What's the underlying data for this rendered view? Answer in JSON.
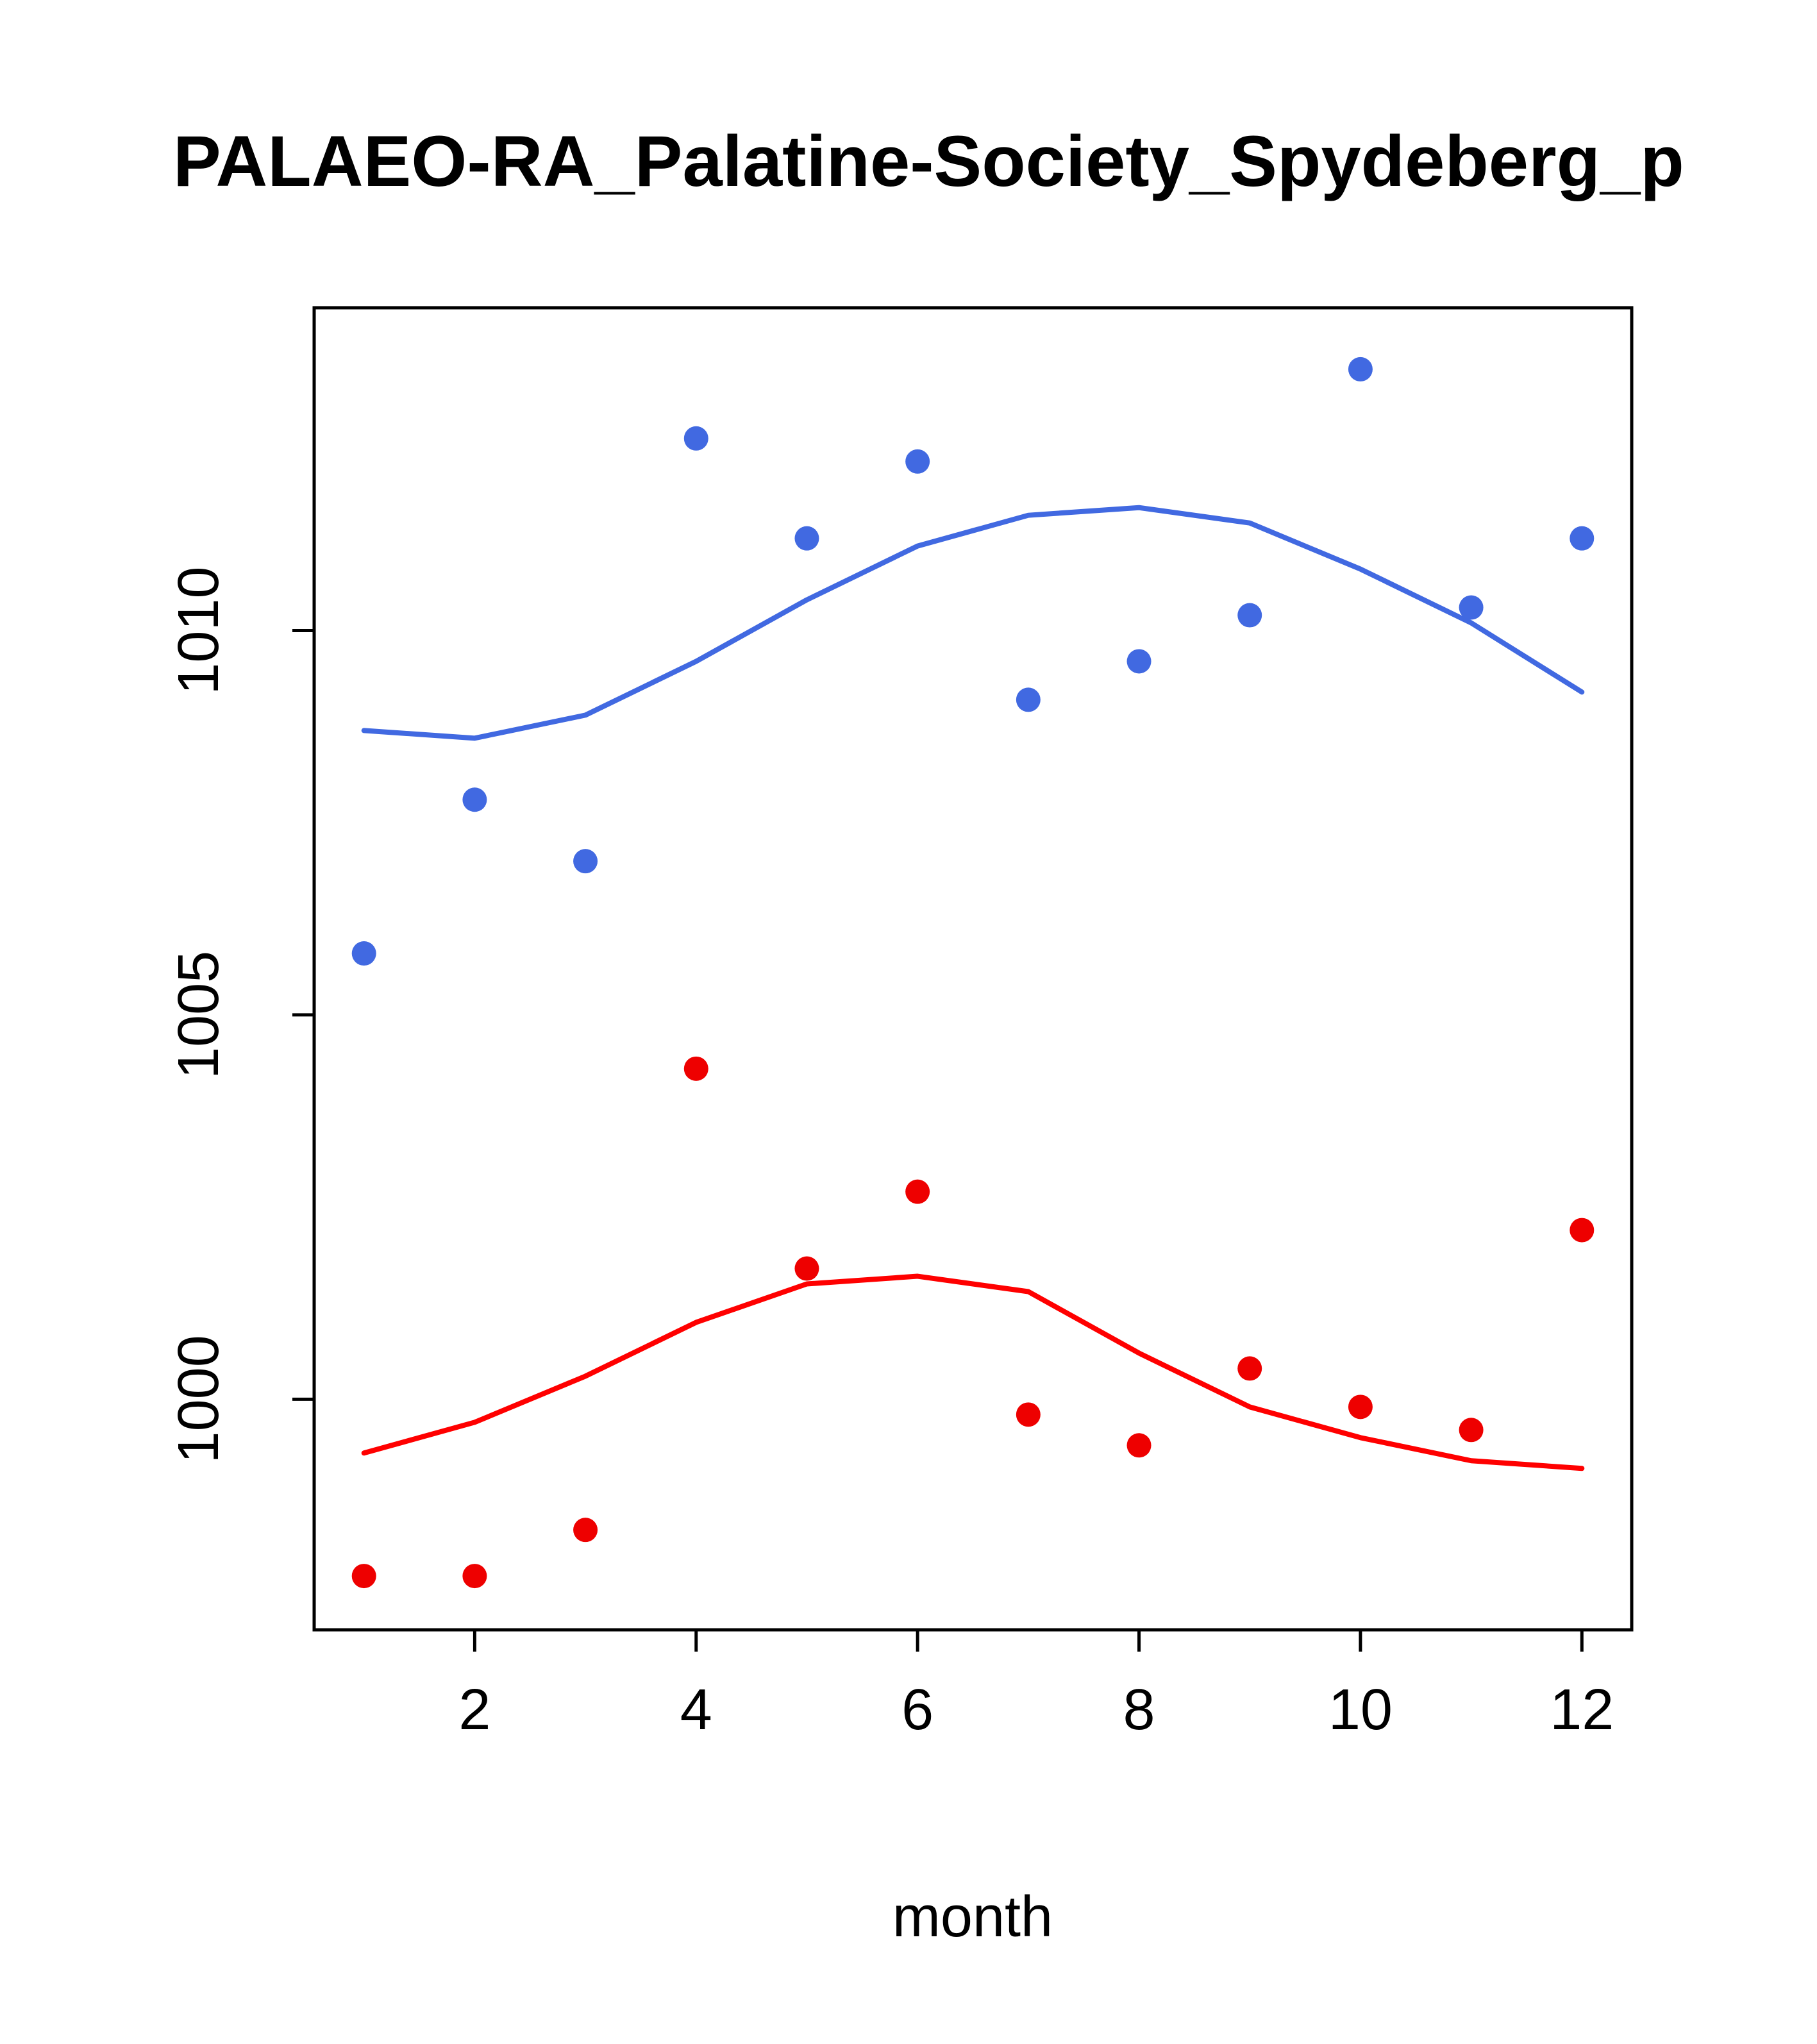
{
  "title": "PALAEO-RA_Palatine-Society_Spydeberg_p",
  "chart_data": {
    "type": "scatter",
    "title": "PALAEO-RA_Palatine-Society_Spydeberg_p",
    "xlabel": "month",
    "ylabel": "",
    "x": [
      1,
      2,
      3,
      4,
      5,
      6,
      7,
      8,
      9,
      10,
      11,
      12
    ],
    "x_ticks": [
      2,
      4,
      6,
      8,
      10,
      12
    ],
    "y_ticks": [
      1000,
      1005,
      1010
    ],
    "xlim": [
      0.55,
      12.45
    ],
    "ylim": [
      997.0,
      1014.2
    ],
    "grid": false,
    "legend": "none",
    "frame_color": "#000000",
    "series": [
      {
        "name": "upper-line",
        "type": "line",
        "color": "#4169E1",
        "values": [
          1008.7,
          1008.6,
          1008.9,
          1009.6,
          1010.4,
          1011.1,
          1011.5,
          1011.6,
          1011.4,
          1010.8,
          1010.1,
          1009.2
        ]
      },
      {
        "name": "upper-points",
        "type": "scatter",
        "color": "#4169E1",
        "values": [
          1005.8,
          1007.8,
          1007.0,
          1012.5,
          1011.2,
          1012.2,
          1009.1,
          1009.6,
          1010.2,
          1013.4,
          1010.3,
          1011.2
        ]
      },
      {
        "name": "lower-line",
        "type": "line",
        "color": "#FF0000",
        "values": [
          999.3,
          999.7,
          1000.3,
          1001.0,
          1001.5,
          1001.6,
          1001.4,
          1000.6,
          999.9,
          999.5,
          999.2,
          999.1
        ]
      },
      {
        "name": "lower-points",
        "type": "scatter",
        "color": "#EE0000",
        "values": [
          997.7,
          997.7,
          998.3,
          1004.3,
          1001.7,
          1002.7,
          999.8,
          999.4,
          1000.4,
          999.9,
          999.6,
          1002.2
        ]
      }
    ]
  }
}
